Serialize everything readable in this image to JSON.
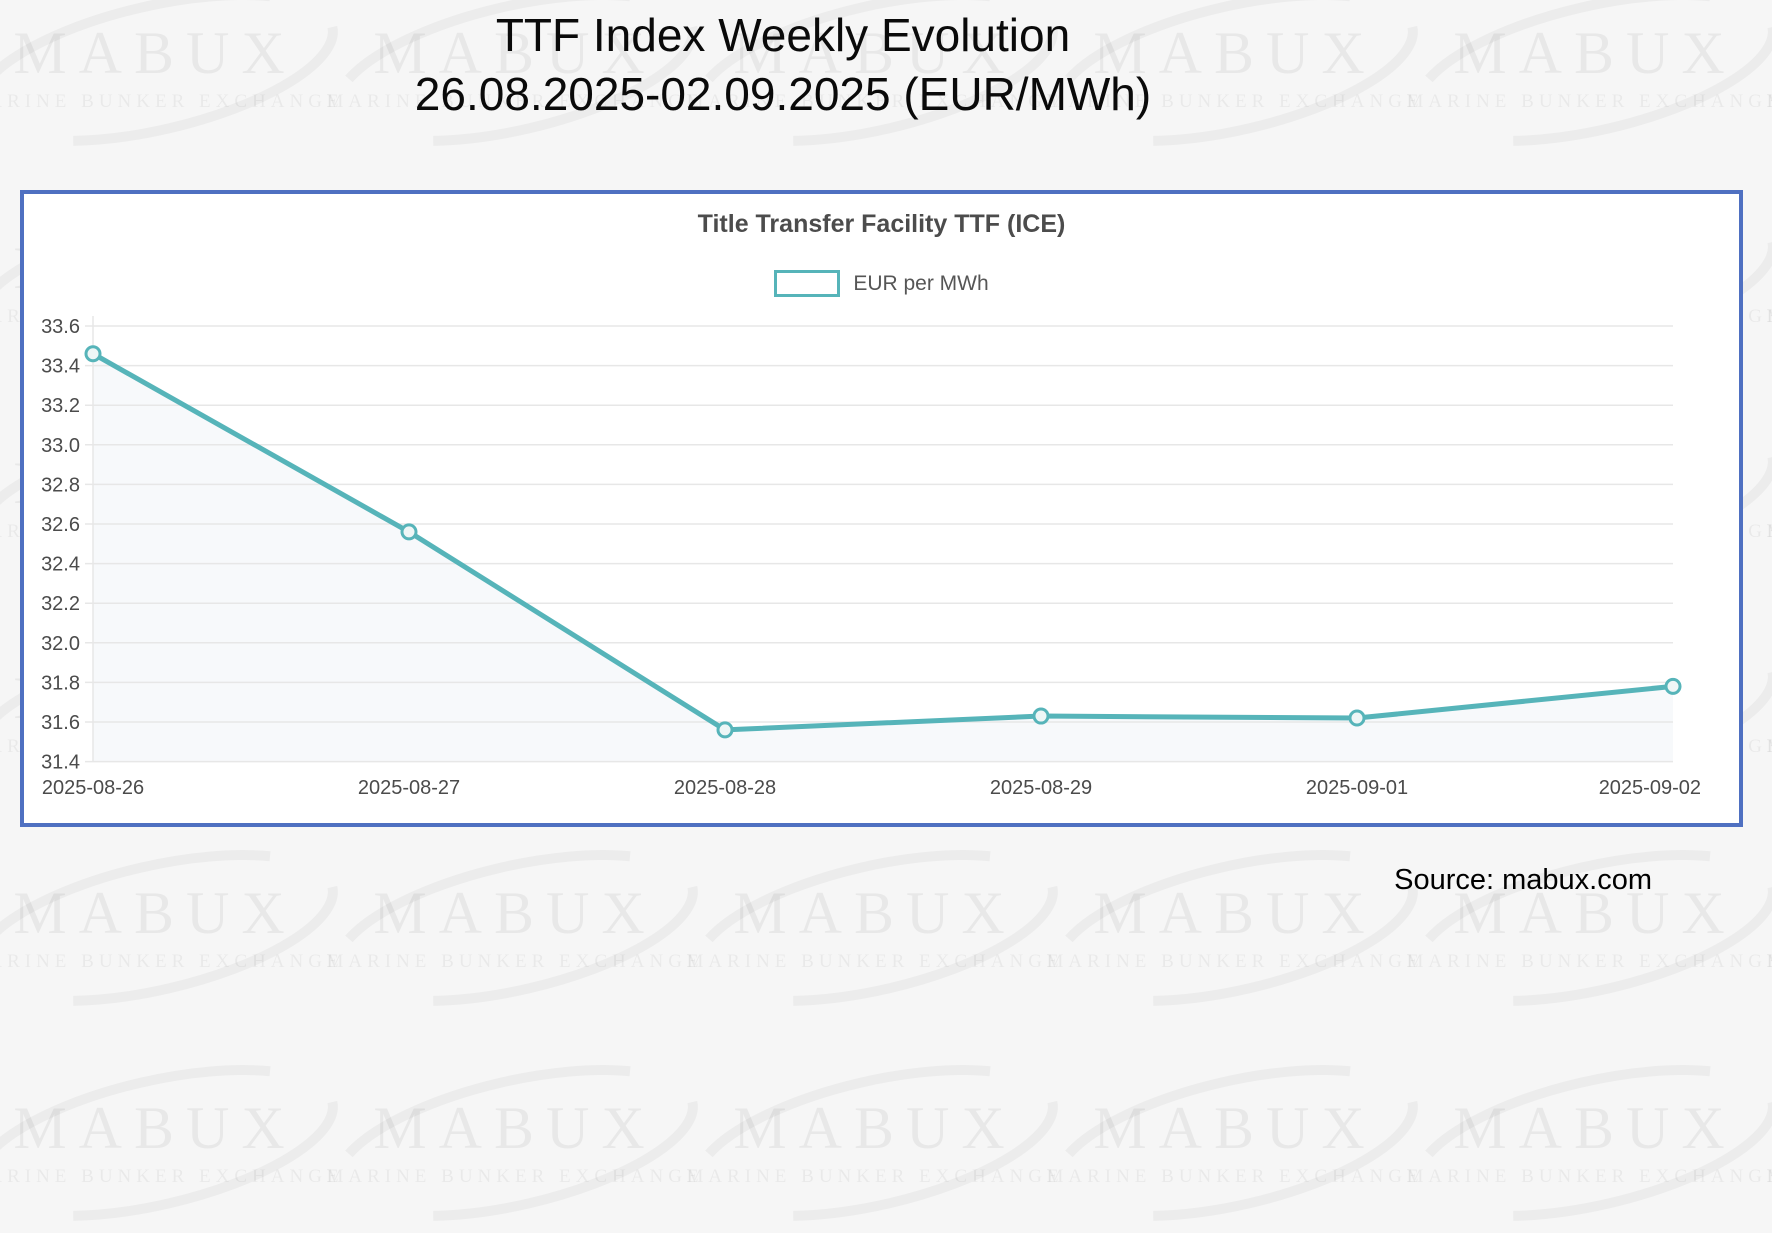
{
  "page_title": {
    "line1": "TTF Index Weekly Evolution",
    "line2": "26.08.2025-02.09.2025 (EUR/MWh)"
  },
  "watermark": {
    "brand": "MABUX",
    "tagline": "MARINE BUNKER EXCHANGE"
  },
  "source_label": "Source: mabux.com",
  "chart_data": {
    "type": "line",
    "title": "Title Transfer Facility TTF (ICE)",
    "legend_position": "top",
    "legend": [
      {
        "label": "EUR per MWh",
        "color": "#56b4b9"
      }
    ],
    "categories": [
      "2025-08-26",
      "2025-08-27",
      "2025-08-28",
      "2025-08-29",
      "2025-09-01",
      "2025-09-02"
    ],
    "series": [
      {
        "name": "EUR per MWh",
        "values": [
          33.46,
          32.56,
          31.56,
          31.63,
          31.62,
          31.78
        ]
      }
    ],
    "ylim": [
      31.4,
      33.6
    ],
    "ytick_step": 0.2,
    "grid": true,
    "colors": {
      "line": "#56b4b9",
      "marker_fill": "#eef6f6",
      "area_fill": "rgba(110,145,185,0.055)",
      "grid": "#e7e7e7",
      "tick_label": "#4b4b4b",
      "chart_title": "#4c4c4c",
      "panel_border": "#4f70c1"
    }
  }
}
